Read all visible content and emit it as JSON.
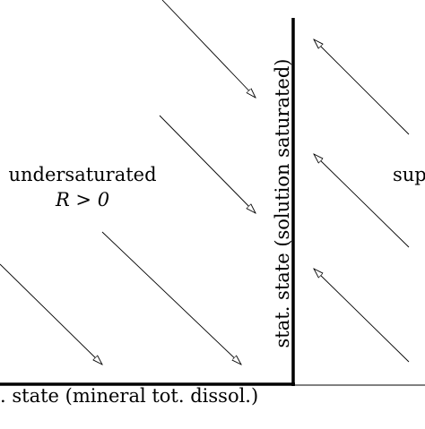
{
  "diagram": {
    "regions": {
      "left": {
        "label": "undersaturated",
        "condition": "R > 0",
        "arrow_direction": "down-right"
      },
      "right": {
        "label_partial": "sup",
        "arrow_direction": "up-left"
      }
    },
    "axes": {
      "vertical_label": "stat. state (solution saturated)",
      "horizontal_label": ". state (mineral tot. dissol.)"
    },
    "colors": {
      "line": "#000000",
      "background": "#ffffff"
    }
  }
}
